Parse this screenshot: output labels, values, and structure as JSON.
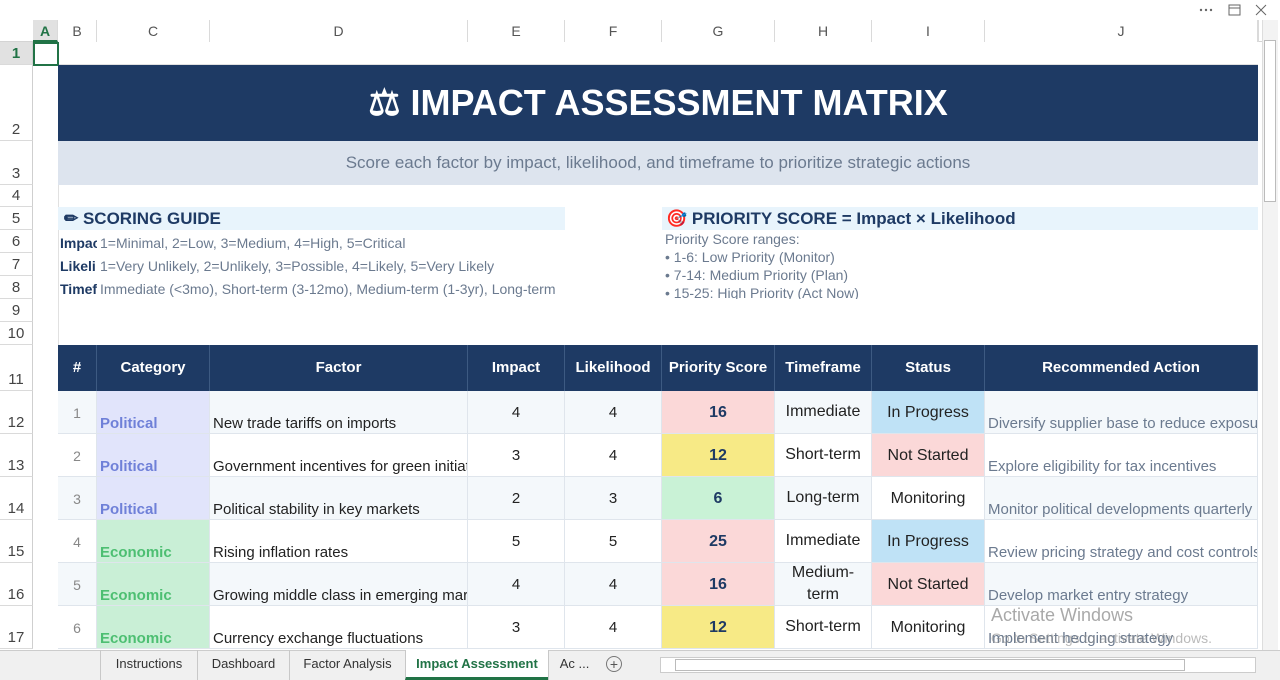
{
  "column_headers": [
    "A",
    "B",
    "C",
    "D",
    "E",
    "F",
    "G",
    "H",
    "I",
    "J"
  ],
  "row_numbers": [
    1,
    2,
    3,
    4,
    5,
    6,
    7,
    8,
    9,
    10,
    11,
    12,
    13,
    14,
    15,
    16,
    17
  ],
  "header": {
    "title": "⚖ IMPACT ASSESSMENT MATRIX",
    "subtitle": "Score each factor by impact, likelihood, and timeframe to prioritize strategic actions"
  },
  "scoring_guide": {
    "title": "✏ SCORING GUIDE",
    "items": [
      {
        "label": "Impac",
        "text": "1=Minimal, 2=Low, 3=Medium, 4=High, 5=Critical"
      },
      {
        "label": "Likeli",
        "text": "1=Very Unlikely, 2=Unlikely, 3=Possible, 4=Likely, 5=Very Likely"
      },
      {
        "label": "Timef",
        "text": "Immediate (<3mo), Short-term (3-12mo), Medium-term (1-3yr), Long-term"
      }
    ]
  },
  "priority_guide": {
    "title": "🎯 PRIORITY SCORE = Impact × Likelihood",
    "intro": "Priority Score ranges:",
    "ranges": [
      "• 1-6: Low Priority (Monitor)",
      "• 7-14: Medium Priority (Plan)",
      "• 15-25: High Priority (Act Now)"
    ]
  },
  "table": {
    "columns": [
      "#",
      "Category",
      "Factor",
      "Impact",
      "Likelihood",
      "Priority Score",
      "Timeframe",
      "Status",
      "Recommended Action"
    ],
    "rows": [
      [
        1,
        "Political",
        "New trade tariffs on imports",
        4,
        4,
        16,
        "Immediate",
        "In Progress",
        "Diversify supplier base to reduce exposure"
      ],
      [
        2,
        "Political",
        "Government incentives for green initiativ",
        3,
        4,
        12,
        "Short-term",
        "Not Started",
        "Explore eligibility for tax incentives"
      ],
      [
        3,
        "Political",
        "Political stability in key markets",
        2,
        3,
        6,
        "Long-term",
        "Monitoring",
        "Monitor political developments quarterly"
      ],
      [
        4,
        "Economic",
        "Rising inflation rates",
        5,
        5,
        25,
        "Immediate",
        "In Progress",
        "Review pricing strategy and cost controls"
      ],
      [
        5,
        "Economic",
        "Growing middle class in emerging mark",
        4,
        4,
        16,
        "Medium-term",
        "Not Started",
        "Develop market entry strategy"
      ],
      [
        6,
        "Economic",
        "Currency exchange fluctuations",
        3,
        4,
        12,
        "Short-term",
        "Monitoring",
        "Implement hedging strategy"
      ]
    ]
  },
  "sheet_tabs": [
    "Instructions",
    "Dashboard",
    "Factor Analysis",
    "Impact Assessment",
    "Ac ..."
  ],
  "watermark": {
    "title": "Activate Windows",
    "text": "Go to Settings to activate Windows."
  }
}
